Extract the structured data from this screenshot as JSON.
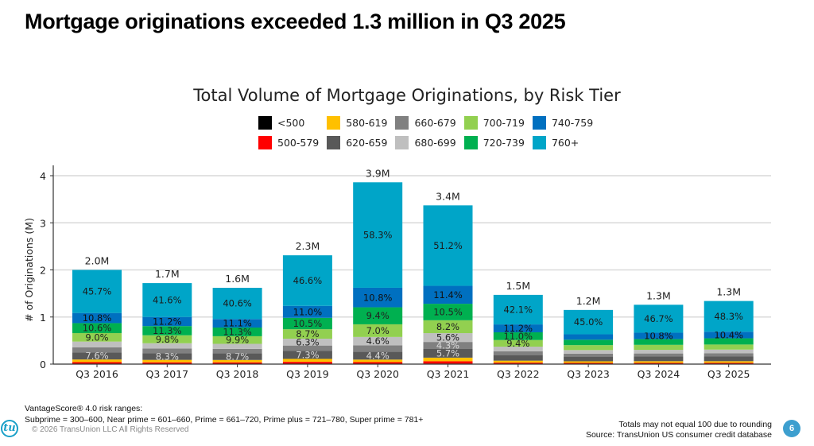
{
  "slide": {
    "title": "Mortgage originations exceeded 1.3 million in Q3 2025",
    "page_number": "6"
  },
  "footer": {
    "notes_line1": "VantageScore® 4.0 risk ranges:",
    "notes_line2": "Subprime = 300–600, Near prime = 601–660, Prime = 661–720, Prime plus = 721–780, Super prime = 781+",
    "copyright": "© 2026 TransUnion LLC All Rights Reserved",
    "rounding_note": "Totals may not equal 100 due to rounding",
    "source": "Source: TransUnion US consumer credit database",
    "logo_text": "tu",
    "logo_icon": "transunion-logo-icon"
  },
  "chart_data": {
    "type": "bar",
    "stacked": true,
    "title": "Total Volume of Mortgage Originations, by Risk Tier",
    "xlabel": "",
    "ylabel": "# of Originations (M)",
    "ylim": [
      0,
      4.2
    ],
    "yticks": [
      0,
      1,
      2,
      3,
      4
    ],
    "grid": true,
    "legend_position": "top-center",
    "categories": [
      "Q3 2016",
      "Q3 2017",
      "Q3 2018",
      "Q3 2019",
      "Q3 2020",
      "Q3 2021",
      "Q3 2022",
      "Q3 2023",
      "Q3 2024",
      "Q3 2025"
    ],
    "totals": [
      2.0,
      1.72,
      1.62,
      2.31,
      3.86,
      3.37,
      1.47,
      1.15,
      1.26,
      1.34
    ],
    "total_labels": [
      "2.0M",
      "1.7M",
      "1.6M",
      "2.3M",
      "3.9M",
      "3.4M",
      "1.5M",
      "1.2M",
      "1.3M",
      "1.3M"
    ],
    "series": [
      {
        "name": "<500",
        "color": "#000000",
        "share_pct": [
          0.3,
          0.3,
          0.3,
          0.3,
          0.2,
          0.3,
          0.3,
          0.3,
          0.3,
          0.3
        ],
        "labels": [
          "",
          "",
          "",
          "",
          "",
          "",
          "",
          "",
          "",
          ""
        ],
        "label_color": "#000000"
      },
      {
        "name": "500-579",
        "color": "#ff0000",
        "share_pct": [
          1.8,
          1.9,
          2.0,
          1.8,
          0.9,
          1.5,
          1.8,
          1.9,
          1.8,
          1.7
        ],
        "labels": [
          "",
          "",
          "",
          "",
          "",
          "",
          "",
          "",
          "",
          ""
        ],
        "label_color": "#000000"
      },
      {
        "name": "580-619",
        "color": "#ffc000",
        "share_pct": [
          2.8,
          3.0,
          3.1,
          2.7,
          1.4,
          2.3,
          2.8,
          3.0,
          2.8,
          2.6
        ],
        "labels": [
          "",
          "",
          "",
          "",
          "",
          "",
          "",
          "",
          "",
          ""
        ],
        "label_color": "#000000"
      },
      {
        "name": "620-659",
        "color": "#595959",
        "share_pct": [
          7.6,
          8.3,
          8.7,
          7.3,
          4.4,
          5.7,
          8.0,
          8.6,
          7.8,
          7.3
        ],
        "labels": [
          "7.6%",
          "8.3%",
          "8.7%",
          "7.3%",
          "4.4%",
          "5.7%",
          "",
          "",
          "",
          ""
        ],
        "label_color": "#d9d9d9"
      },
      {
        "name": "660-679",
        "color": "#808080",
        "share_pct": [
          5.4,
          5.6,
          5.7,
          5.0,
          3.5,
          4.3,
          5.4,
          5.6,
          5.1,
          5.0
        ],
        "labels": [
          "",
          "",
          "",
          "",
          "",
          "4.3%",
          "",
          "",
          "",
          ""
        ],
        "label_color": "#d9d9d9"
      },
      {
        "name": "680-699",
        "color": "#bfbfbf",
        "share_pct": [
          6.0,
          6.5,
          6.6,
          6.3,
          4.6,
          5.6,
          6.6,
          6.5,
          6.0,
          5.9
        ],
        "labels": [
          "",
          "",
          "",
          "6.3%",
          "4.6%",
          "5.6%",
          "",
          "",
          "",
          ""
        ],
        "label_color": "#222222"
      },
      {
        "name": "700-719",
        "color": "#92d050",
        "share_pct": [
          9.0,
          9.8,
          9.9,
          8.7,
          7.0,
          8.2,
          9.4,
          9.1,
          8.4,
          8.0
        ],
        "labels": [
          "9.0%",
          "9.8%",
          "9.9%",
          "8.7%",
          "7.0%",
          "8.2%",
          "9.4%",
          "",
          "",
          ""
        ],
        "label_color": "#222222"
      },
      {
        "name": "720-739",
        "color": "#00b050",
        "share_pct": [
          10.6,
          11.3,
          11.3,
          10.5,
          9.4,
          10.5,
          11.0,
          10.0,
          9.6,
          9.8
        ],
        "labels": [
          "10.6%",
          "11.3%",
          "11.3%",
          "10.5%",
          "9.4%",
          "10.5%",
          "11.0%",
          "",
          "",
          ""
        ],
        "label_color": "#222222"
      },
      {
        "name": "740-759",
        "color": "#0070c0",
        "share_pct": [
          10.8,
          11.2,
          11.1,
          11.0,
          10.8,
          11.4,
          11.2,
          10.0,
          10.8,
          10.4
        ],
        "labels": [
          "10.8%",
          "11.2%",
          "11.1%",
          "11.0%",
          "10.8%",
          "11.4%",
          "11.2%",
          "",
          "10.8%",
          "10.4%"
        ],
        "label_color": "#111111"
      },
      {
        "name": "760+",
        "color": "#00a5c8",
        "share_pct": [
          45.7,
          41.6,
          40.6,
          46.6,
          58.3,
          51.2,
          42.1,
          45.0,
          46.7,
          48.3
        ],
        "labels": [
          "45.7%",
          "41.6%",
          "40.6%",
          "46.6%",
          "58.3%",
          "51.2%",
          "42.1%",
          "45.0%",
          "46.7%",
          "48.3%"
        ],
        "label_color": "#1a1a1a"
      }
    ]
  }
}
